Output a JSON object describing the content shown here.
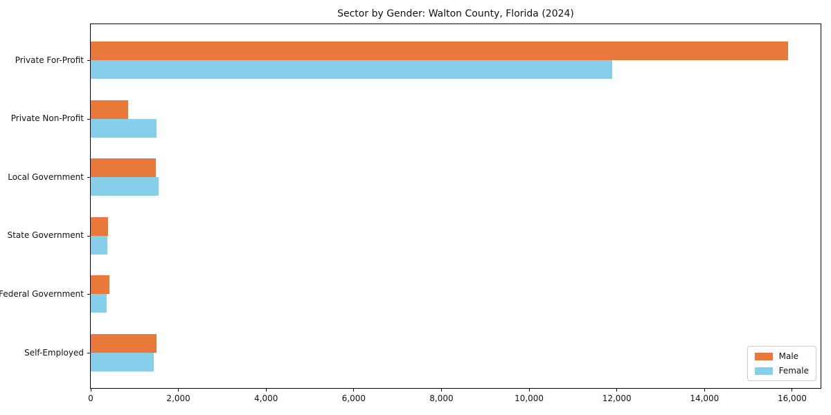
{
  "chart_data": {
    "type": "bar",
    "orientation": "horizontal",
    "title": "Sector by Gender: Walton County, Florida (2024)",
    "xlabel": "",
    "ylabel": "",
    "categories": [
      "Private For-Profit",
      "Private Non-Profit",
      "Local Government",
      "State Government",
      "Federal Government",
      "Self-Employed"
    ],
    "series": [
      {
        "name": "Male",
        "color": "#e8793b",
        "values": [
          15900,
          860,
          1490,
          400,
          430,
          1500
        ]
      },
      {
        "name": "Female",
        "color": "#87ceeb",
        "values": [
          11900,
          1500,
          1550,
          385,
          360,
          1440
        ]
      }
    ],
    "xlim": [
      0,
      16680
    ],
    "x_ticks": [
      0,
      2000,
      4000,
      6000,
      8000,
      10000,
      12000,
      14000,
      16000
    ],
    "x_tick_labels": [
      "0",
      "2,000",
      "4,000",
      "6,000",
      "8,000",
      "10,000",
      "12,000",
      "14,000",
      "16,000"
    ],
    "grid": false,
    "legend_position": "lower right"
  }
}
